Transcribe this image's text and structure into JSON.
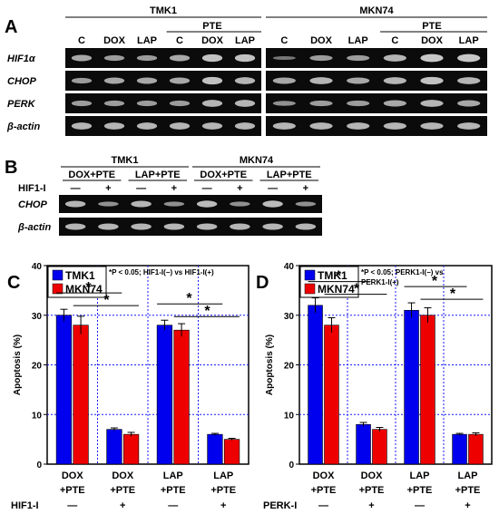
{
  "panel_a": {
    "letter": "A",
    "groups": [
      {
        "name": "TMK1",
        "subgroup": "PTE",
        "lanes": [
          "C",
          "DOX",
          "LAP",
          "C",
          "DOX",
          "LAP"
        ]
      },
      {
        "name": "MKN74",
        "subgroup": "PTE",
        "lanes": [
          "C",
          "DOX",
          "LAP",
          "C",
          "DOX",
          "LAP"
        ]
      }
    ],
    "genes": [
      "HIF1α",
      "CHOP",
      "PERK",
      "β-actin"
    ]
  },
  "panel_b": {
    "letter": "B",
    "cell_lines": [
      "TMK1",
      "MKN74"
    ],
    "treatments": [
      "DOX+PTE",
      "LAP+PTE",
      "DOX+PTE",
      "LAP+PTE"
    ],
    "inhibitor_label": "HIF1-I",
    "signs": [
      "—",
      "+",
      "—",
      "+",
      "—",
      "+",
      "—",
      "+"
    ],
    "genes": [
      "CHOP",
      "β-actin"
    ]
  },
  "chart_data": [
    {
      "type": "bar",
      "panel": "C",
      "ylabel": "Apoptosis (%)",
      "ylim": [
        0,
        40
      ],
      "yticks": [
        0,
        10,
        20,
        30,
        40
      ],
      "categories": [
        [
          "DOX",
          "+PTE"
        ],
        [
          "DOX",
          "+PTE"
        ],
        [
          "LAP",
          "+PTE"
        ],
        [
          "LAP",
          "+PTE"
        ]
      ],
      "inhibitor_label": "HIF1-I",
      "inhibitor_signs": [
        "—",
        "+",
        "—",
        "+"
      ],
      "series": [
        {
          "name": "TMK1",
          "color": "#0000ee",
          "values": [
            30,
            7,
            28,
            6
          ],
          "errors": [
            1.2,
            0.3,
            1.0,
            0.2
          ]
        },
        {
          "name": "MKN74",
          "color": "#ee0000",
          "values": [
            28,
            6,
            27,
            5
          ],
          "errors": [
            1.8,
            0.4,
            1.3,
            0.2
          ]
        }
      ],
      "annotation": "*P < 0.05; HIF1-I(−) vs HIF1-I(+)",
      "significance": [
        "*",
        "*",
        "*",
        "*"
      ],
      "grid": true,
      "legend": "top-left"
    },
    {
      "type": "bar",
      "panel": "D",
      "ylabel": "Apoptosis (%)",
      "ylim": [
        0,
        40
      ],
      "yticks": [
        0,
        10,
        20,
        30,
        40
      ],
      "categories": [
        [
          "DOX",
          "+PTE"
        ],
        [
          "DOX",
          "+PTE"
        ],
        [
          "LAP",
          "+PTE"
        ],
        [
          "LAP",
          "+PTE"
        ]
      ],
      "inhibitor_label": "PERK-I",
      "inhibitor_signs": [
        "—",
        "+",
        "—",
        "+"
      ],
      "series": [
        {
          "name": "TMK1",
          "color": "#0000ee",
          "values": [
            32,
            8,
            31,
            6
          ],
          "errors": [
            1.5,
            0.4,
            1.5,
            0.2
          ]
        },
        {
          "name": "MKN74",
          "color": "#ee0000",
          "values": [
            28,
            7,
            30,
            6
          ],
          "errors": [
            1.5,
            0.4,
            1.5,
            0.3
          ]
        }
      ],
      "annotation_lines": [
        "*P < 0.05; PERK1-I(−)  vs",
        "PERK1-I(+)"
      ],
      "significance": [
        "*",
        "*",
        "*",
        "*"
      ],
      "grid": true,
      "legend": "top-left"
    }
  ],
  "colors": {
    "tmk1": "#0000ee",
    "mkn74": "#ee0000",
    "grid": "#1a1aff",
    "gel_bg": "#0b0b0b",
    "band": "#d8d8d8"
  }
}
